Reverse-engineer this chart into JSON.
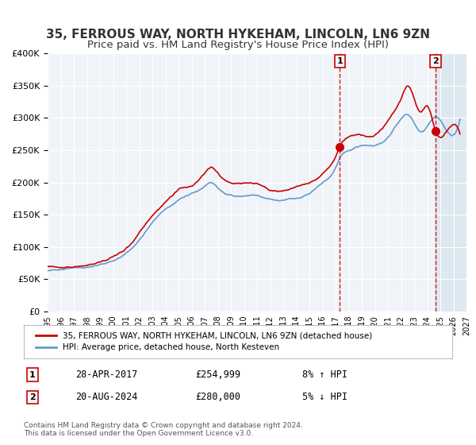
{
  "title": "35, FERROUS WAY, NORTH HYKEHAM, LINCOLN, LN6 9ZN",
  "subtitle": "Price paid vs. HM Land Registry's House Price Index (HPI)",
  "legend_line1": "35, FERROUS WAY, NORTH HYKEHAM, LINCOLN, LN6 9ZN (detached house)",
  "legend_line2": "HPI: Average price, detached house, North Kesteven",
  "marker1_date": "28-APR-2017",
  "marker1_price": 254999,
  "marker1_hpi": "8% ↑ HPI",
  "marker2_date": "20-AUG-2024",
  "marker2_price": 280000,
  "marker2_hpi": "5% ↓ HPI",
  "footer": "Contains HM Land Registry data © Crown copyright and database right 2024.\nThis data is licensed under the Open Government Licence v3.0.",
  "red_color": "#cc0000",
  "blue_color": "#6699cc",
  "background_chart": "#f0f4f8",
  "shaded_region_color": "#dde8f0",
  "grid_color": "#ffffff",
  "xmin": 1995,
  "xmax": 2027,
  "ymin": 0,
  "ymax": 400000,
  "marker1_x": 2017.32,
  "marker2_x": 2024.63,
  "title_fontsize": 11,
  "subtitle_fontsize": 9.5
}
